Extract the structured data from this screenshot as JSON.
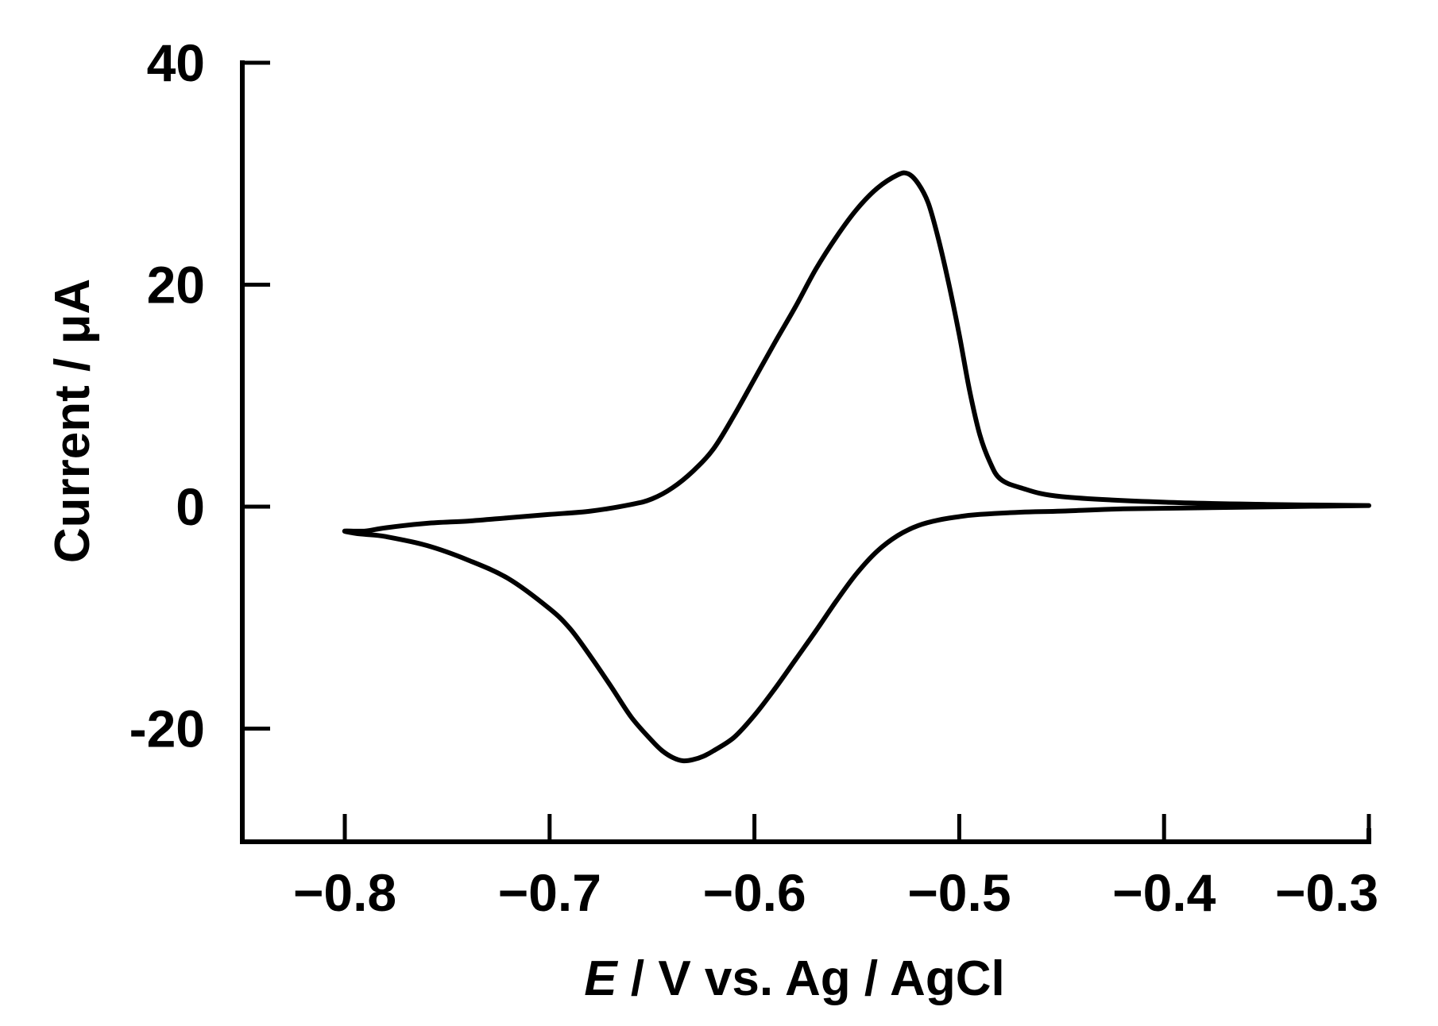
{
  "chart_data": {
    "type": "line",
    "title": "",
    "xlabel": {
      "italic": "E",
      "rest": " / V vs. Ag / AgCl"
    },
    "ylabel": "Current / μA",
    "xlim": [
      -0.85,
      -0.3
    ],
    "ylim": [
      -30,
      40
    ],
    "xticks": [
      -0.8,
      -0.7,
      -0.6,
      -0.5,
      -0.4,
      -0.3
    ],
    "xtick_labels": [
      "−0.8",
      "−0.7",
      "−0.6",
      "−0.5",
      "−0.4",
      "−0.3"
    ],
    "yticks": [
      -20,
      0,
      20,
      40
    ],
    "ytick_labels": [
      "-20",
      "0",
      "20",
      "40"
    ],
    "grid": false,
    "legend": "none",
    "series": [
      {
        "name": "",
        "color": "#000000",
        "x": [
          -0.3,
          -0.35,
          -0.4,
          -0.45,
          -0.47,
          -0.48,
          -0.485,
          -0.49,
          -0.495,
          -0.5,
          -0.505,
          -0.51,
          -0.515,
          -0.52,
          -0.525,
          -0.53,
          -0.54,
          -0.55,
          -0.56,
          -0.57,
          -0.58,
          -0.59,
          -0.6,
          -0.61,
          -0.62,
          -0.63,
          -0.64,
          -0.65,
          -0.66,
          -0.68,
          -0.7,
          -0.72,
          -0.74,
          -0.76,
          -0.78,
          -0.79,
          -0.8,
          -0.795,
          -0.79,
          -0.78,
          -0.76,
          -0.74,
          -0.72,
          -0.7,
          -0.69,
          -0.68,
          -0.67,
          -0.66,
          -0.65,
          -0.645,
          -0.64,
          -0.635,
          -0.63,
          -0.625,
          -0.62,
          -0.61,
          -0.6,
          -0.59,
          -0.58,
          -0.57,
          -0.56,
          -0.55,
          -0.54,
          -0.53,
          -0.52,
          -0.51,
          -0.5,
          -0.49,
          -0.47,
          -0.45,
          -0.42,
          -0.38,
          -0.34,
          -0.3
        ],
        "y": [
          0.1,
          0.2,
          0.4,
          0.9,
          1.7,
          2.5,
          4.0,
          6.5,
          10.5,
          15.5,
          20.0,
          24.0,
          27.3,
          29.1,
          30.0,
          29.9,
          28.7,
          26.8,
          24.3,
          21.4,
          18.0,
          14.8,
          11.5,
          8.2,
          5.2,
          3.2,
          1.7,
          0.7,
          0.2,
          -0.4,
          -0.7,
          -1.0,
          -1.3,
          -1.5,
          -1.9,
          -2.2,
          -2.2,
          -2.4,
          -2.5,
          -2.7,
          -3.5,
          -4.8,
          -6.5,
          -9.2,
          -11.0,
          -13.5,
          -16.2,
          -19.0,
          -21.1,
          -22.0,
          -22.6,
          -22.9,
          -22.8,
          -22.5,
          -22.0,
          -20.8,
          -18.8,
          -16.4,
          -13.8,
          -11.2,
          -8.5,
          -6.0,
          -4.0,
          -2.6,
          -1.7,
          -1.2,
          -0.9,
          -0.7,
          -0.5,
          -0.4,
          -0.2,
          -0.1,
          0.0,
          0.1
        ]
      }
    ]
  }
}
